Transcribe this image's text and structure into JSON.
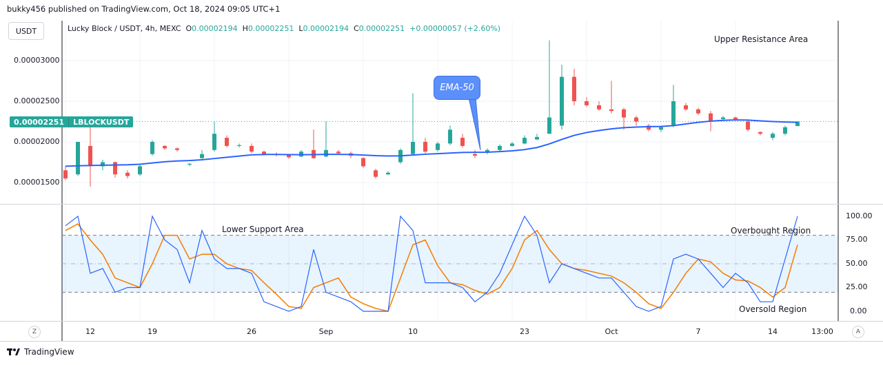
{
  "header": {
    "published": "bukky456 published on TradingView.com, Oct 18, 2024 09:05 UTC+1"
  },
  "currency_button": "USDT",
  "legend": {
    "symbol": "Lucky Block / USDT, 4h, MEXC",
    "o_label": "O",
    "o": "0.00002194",
    "h_label": "H",
    "h": "0.00002251",
    "l_label": "L",
    "l": "0.00002194",
    "c_label": "C",
    "c": "0.00002251",
    "change": "+0.00000057 (+2.60%)"
  },
  "price_tag": {
    "value": "0.00002251",
    "ticker": "LBLOCKUSDT"
  },
  "annotations": {
    "ema": "EMA-50",
    "upper": "Upper Resistance Area",
    "lower": "Lower Support Area",
    "overbought": "Overbought Region",
    "oversold": "Oversold Region"
  },
  "price_axis": [
    "0.00003000",
    "0.00002500",
    "0.00002000",
    "0.00001500"
  ],
  "osc_axis": [
    "100.00",
    "75.00",
    "50.00",
    "25.00",
    "0.00"
  ],
  "time_axis": [
    {
      "label": "12",
      "index": 2
    },
    {
      "label": "19",
      "index": 7
    },
    {
      "label": "26",
      "index": 15
    },
    {
      "label": "Sep",
      "index": 21
    },
    {
      "label": "10",
      "index": 28
    },
    {
      "label": "23",
      "index": 37
    },
    {
      "label": "Oct",
      "index": 44
    },
    {
      "label": "7",
      "index": 51
    },
    {
      "label": "14",
      "index": 57
    },
    {
      "label": "13:00",
      "index": 61
    }
  ],
  "axis_buttons": {
    "left": "Z",
    "right": "A"
  },
  "footer": {
    "brand": "TradingView"
  },
  "colors": {
    "up": "#26a69a",
    "down": "#ef5350",
    "ema": "#2962ff",
    "k": "#2962ff",
    "d": "#f57c00",
    "band": "#2196f3"
  },
  "chart_data": {
    "type": "candlestick",
    "price_unit": 1e-08,
    "price_range": [
      1200,
      3500
    ],
    "osc_range": [
      -10,
      112
    ],
    "osc_levels": [
      80,
      50,
      20
    ],
    "candles": [
      [
        1650,
        1700,
        1530,
        1550
      ],
      [
        1600,
        2000,
        1580,
        2000
      ],
      [
        1950,
        2200,
        1450,
        1700
      ],
      [
        1700,
        1780,
        1650,
        1750
      ],
      [
        1750,
        1760,
        1560,
        1600
      ],
      [
        1620,
        1650,
        1550,
        1580
      ],
      [
        1600,
        1720,
        1580,
        1700
      ],
      [
        1850,
        2020,
        1830,
        2000
      ],
      [
        1950,
        1960,
        1900,
        1920
      ],
      [
        1920,
        1930,
        1880,
        1900
      ],
      [
        1720,
        1740,
        1700,
        1730
      ],
      [
        1800,
        1900,
        1790,
        1850
      ],
      [
        1900,
        2250,
        1880,
        2100
      ],
      [
        2050,
        2080,
        1930,
        1950
      ],
      [
        1950,
        1980,
        1930,
        1960
      ],
      [
        1950,
        1980,
        1860,
        1880
      ],
      [
        1880,
        1890,
        1830,
        1850
      ],
      [
        1850,
        1870,
        1820,
        1840
      ],
      [
        1840,
        1850,
        1790,
        1810
      ],
      [
        1820,
        1900,
        1810,
        1880
      ],
      [
        1900,
        2150,
        1790,
        1800
      ],
      [
        1820,
        2250,
        1810,
        1900
      ],
      [
        1880,
        1900,
        1840,
        1860
      ],
      [
        1860,
        1880,
        1800,
        1830
      ],
      [
        1800,
        1810,
        1680,
        1700
      ],
      [
        1650,
        1670,
        1550,
        1570
      ],
      [
        1600,
        1640,
        1590,
        1620
      ],
      [
        1750,
        1920,
        1730,
        1900
      ],
      [
        1850,
        2600,
        1830,
        2000
      ],
      [
        2000,
        2050,
        1860,
        1880
      ],
      [
        1900,
        2000,
        1880,
        1980
      ],
      [
        1980,
        2200,
        1960,
        2150
      ],
      [
        2050,
        2100,
        1930,
        1950
      ],
      [
        1850,
        1900,
        1800,
        1830
      ],
      [
        1870,
        1920,
        1850,
        1900
      ],
      [
        1900,
        1970,
        1890,
        1950
      ],
      [
        1950,
        2000,
        1940,
        1980
      ],
      [
        1980,
        2080,
        1970,
        2050
      ],
      [
        2030,
        2100,
        2020,
        2060
      ],
      [
        2100,
        3250,
        2100,
        2300
      ],
      [
        2200,
        2950,
        2150,
        2800
      ],
      [
        2800,
        2900,
        2450,
        2500
      ],
      [
        2500,
        2550,
        2430,
        2450
      ],
      [
        2450,
        2500,
        2380,
        2400
      ],
      [
        2400,
        2750,
        2350,
        2380
      ],
      [
        2400,
        2420,
        2150,
        2300
      ],
      [
        2300,
        2320,
        2200,
        2250
      ],
      [
        2200,
        2220,
        2130,
        2150
      ],
      [
        2150,
        2200,
        2120,
        2180
      ],
      [
        2200,
        2700,
        2180,
        2500
      ],
      [
        2450,
        2480,
        2380,
        2400
      ],
      [
        2400,
        2420,
        2330,
        2350
      ],
      [
        2350,
        2380,
        2130,
        2250
      ],
      [
        2280,
        2320,
        2260,
        2300
      ],
      [
        2300,
        2310,
        2260,
        2280
      ],
      [
        2250,
        2270,
        2130,
        2150
      ],
      [
        2120,
        2130,
        2080,
        2100
      ],
      [
        2050,
        2120,
        2020,
        2100
      ],
      [
        2100,
        2200,
        2080,
        2180
      ],
      [
        2194,
        2251,
        2194,
        2251
      ]
    ],
    "ema50": [
      1700,
      1705,
      1710,
      1712,
      1715,
      1718,
      1725,
      1740,
      1755,
      1765,
      1770,
      1780,
      1795,
      1810,
      1825,
      1840,
      1845,
      1845,
      1843,
      1842,
      1843,
      1846,
      1846,
      1844,
      1838,
      1830,
      1826,
      1828,
      1838,
      1848,
      1855,
      1862,
      1870,
      1872,
      1873,
      1880,
      1890,
      1905,
      1930,
      1975,
      2030,
      2080,
      2115,
      2140,
      2160,
      2175,
      2182,
      2188,
      2190,
      2200,
      2220,
      2240,
      2255,
      2265,
      2270,
      2268,
      2258,
      2250,
      2245,
      2240
    ],
    "stoch_k": [
      90,
      100,
      40,
      45,
      20,
      25,
      25,
      100,
      75,
      65,
      30,
      85,
      55,
      45,
      45,
      40,
      10,
      5,
      0,
      5,
      65,
      20,
      15,
      10,
      0,
      0,
      0,
      100,
      85,
      30,
      30,
      30,
      25,
      10,
      20,
      40,
      70,
      100,
      80,
      30,
      50,
      45,
      40,
      35,
      35,
      20,
      5,
      0,
      5,
      55,
      60,
      55,
      40,
      25,
      40,
      30,
      10,
      10,
      55,
      100
    ],
    "stoch_d": [
      85,
      92,
      75,
      60,
      35,
      30,
      25,
      50,
      80,
      80,
      55,
      60,
      60,
      50,
      45,
      43,
      30,
      18,
      5,
      3,
      25,
      30,
      35,
      15,
      8,
      3,
      0,
      35,
      70,
      75,
      48,
      30,
      28,
      22,
      18,
      25,
      45,
      75,
      85,
      65,
      50,
      45,
      43,
      40,
      37,
      30,
      20,
      8,
      3,
      20,
      40,
      55,
      52,
      40,
      33,
      32,
      25,
      15,
      25,
      70
    ]
  }
}
